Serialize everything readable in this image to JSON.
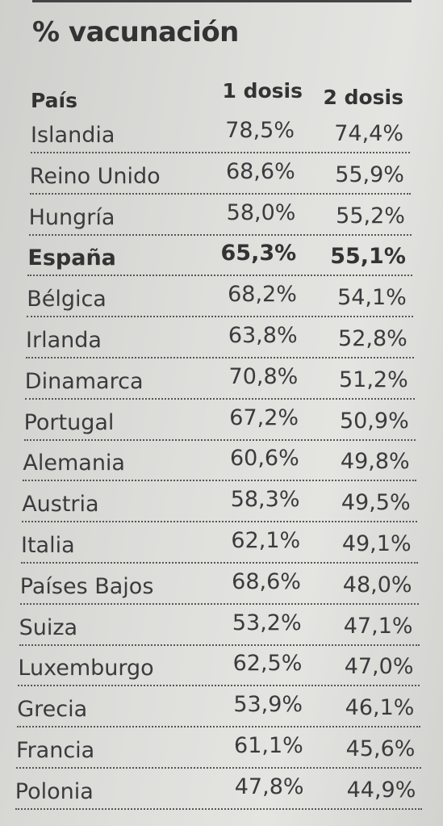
{
  "title": "% vacunación",
  "table": {
    "header": [
      "País",
      "1 dosis",
      "2 dosis"
    ],
    "rows": [
      [
        "Islandia",
        "78,5%",
        "74,4%"
      ],
      [
        "Reino Unido",
        "68,6%",
        "55,9%"
      ],
      [
        "Hungría",
        "58,0%",
        "55,2%"
      ],
      [
        "España",
        "65,3%",
        "55,1%"
      ],
      [
        "Bélgica",
        "68,2%",
        "54,1%"
      ],
      [
        "Irlanda",
        "63,8%",
        "52,8%"
      ],
      [
        "Dinamarca",
        "70,8%",
        "51,2%"
      ],
      [
        "Portugal",
        "67,2%",
        "50,9%"
      ],
      [
        "Alemania",
        "60,6%",
        "49,8%"
      ],
      [
        "Austria",
        "58,3%",
        "49,5%"
      ],
      [
        "Italia",
        "62,1%",
        "49,1%"
      ],
      [
        "Países Bajos",
        "68,6%",
        "48,0%"
      ],
      [
        "Suiza",
        "53,2%",
        "47,1%"
      ],
      [
        "Luxemburgo",
        "62,5%",
        "47,0%"
      ],
      [
        "Grecia",
        "53,9%",
        "46,1%"
      ],
      [
        "Francia",
        "61,1%",
        "45,6%"
      ],
      [
        "Polonia",
        "47,8%",
        "44,9%"
      ]
    ],
    "emphasized_row": 3
  }
}
